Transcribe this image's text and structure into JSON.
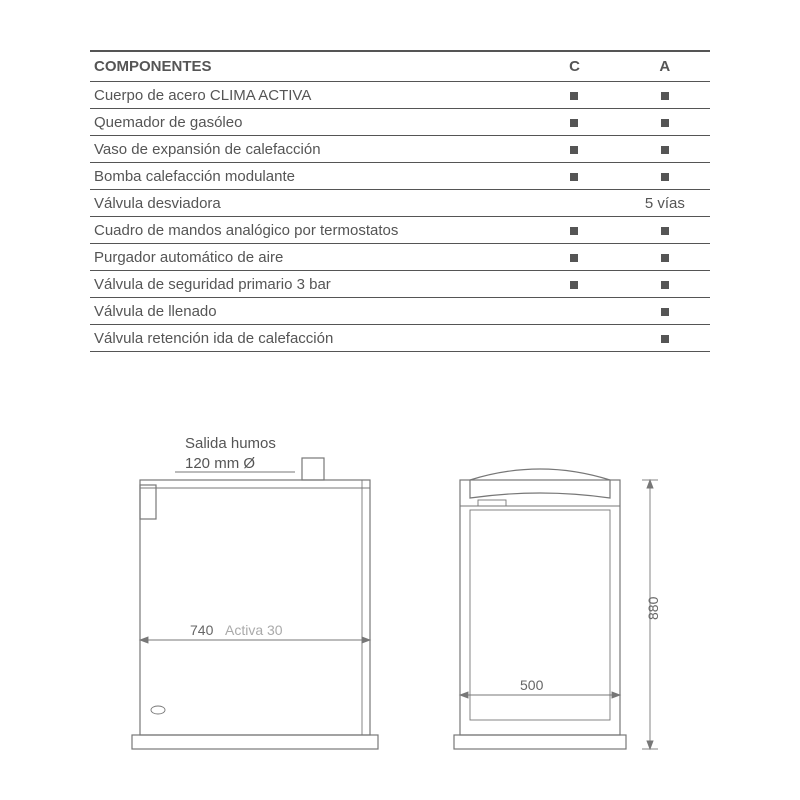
{
  "table": {
    "header": {
      "components": "COMPONENTES",
      "c": "C",
      "a": "A"
    },
    "rows": [
      {
        "label": "Cuerpo de acero CLIMA ACTIVA",
        "c": "mark",
        "a": "mark"
      },
      {
        "label": "Quemador de gasóleo",
        "c": "mark",
        "a": "mark"
      },
      {
        "label": "Vaso de expansión de calefacción",
        "c": "mark",
        "a": "mark"
      },
      {
        "label": "Bomba calefacción modulante",
        "c": "mark",
        "a": "mark"
      },
      {
        "label": "Válvula desviadora",
        "c": "",
        "a": "5 vías",
        "a_is_text": true
      },
      {
        "label": "Cuadro de mandos analógico por termostatos",
        "c": "mark",
        "a": "mark"
      },
      {
        "label": "Purgador automático de aire",
        "c": "mark",
        "a": "mark"
      },
      {
        "label": "Válvula de seguridad primario 3 bar",
        "c": "mark",
        "a": "mark"
      },
      {
        "label": "Válvula de llenado",
        "c": "",
        "a": "mark"
      },
      {
        "label": "Válvula retención ida de calefacción",
        "c": "",
        "a": "mark"
      }
    ]
  },
  "diagram": {
    "smoke_label1": "Salida humos",
    "smoke_label2": "120 mm Ø",
    "width_side": "740",
    "model": "Activa 30",
    "front_width": "500",
    "height": "880"
  },
  "colors": {
    "line": "#777777",
    "text": "#555555",
    "grey_text": "#aaaaaa",
    "background": "#ffffff"
  }
}
